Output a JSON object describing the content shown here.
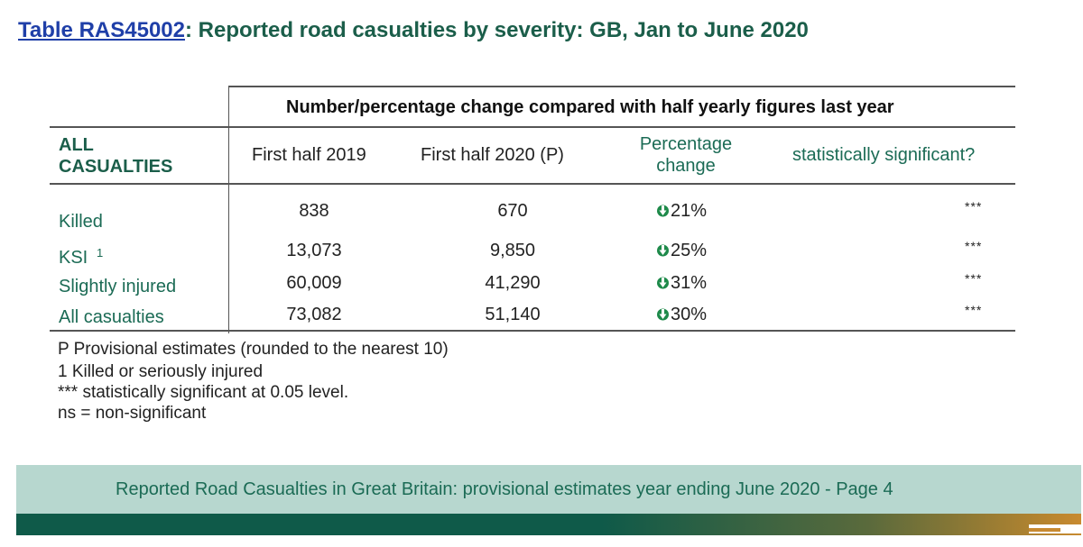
{
  "title": {
    "link_text": "Table RAS45002",
    "rest": ": Reported road casualties by severity: GB, Jan to June 2020"
  },
  "table": {
    "super_header": "Number/percentage change compared with half yearly figures last year",
    "row_header_line1": "ALL",
    "row_header_line2": "CASUALTIES",
    "col_2019": "First half 2019",
    "col_2020": "First half 2020 (P)",
    "col_pct_line1": "Percentage",
    "col_pct_line2": "change",
    "col_sig": "statistically significant?",
    "rows": [
      {
        "label": "Killed",
        "sup": "",
        "v2019": "838",
        "v2020": "670",
        "pct": "21%",
        "sig": "***"
      },
      {
        "label": "KSI",
        "sup": "1",
        "v2019": "13,073",
        "v2020": "9,850",
        "pct": "25%",
        "sig": "***"
      },
      {
        "label": "Slightly injured",
        "sup": "",
        "v2019": "60,009",
        "v2020": "41,290",
        "pct": "31%",
        "sig": "***"
      },
      {
        "label": "All casualties",
        "sup": "",
        "v2019": "73,082",
        "v2020": "51,140",
        "pct": "30%",
        "sig": "***"
      }
    ],
    "arrow_icon": "down-arrow-icon",
    "arrow_color": "#1e8a4a"
  },
  "notes": [
    "P Provisional estimates (rounded to the nearest 10)",
    "1 Killed or seriously injured",
    "*** statistically significant at 0.05 level.",
    "ns = non-significant"
  ],
  "footer": {
    "text": "Reported Road Casualties in Great Britain: provisional estimates year ending June 2020 - Page 4"
  }
}
